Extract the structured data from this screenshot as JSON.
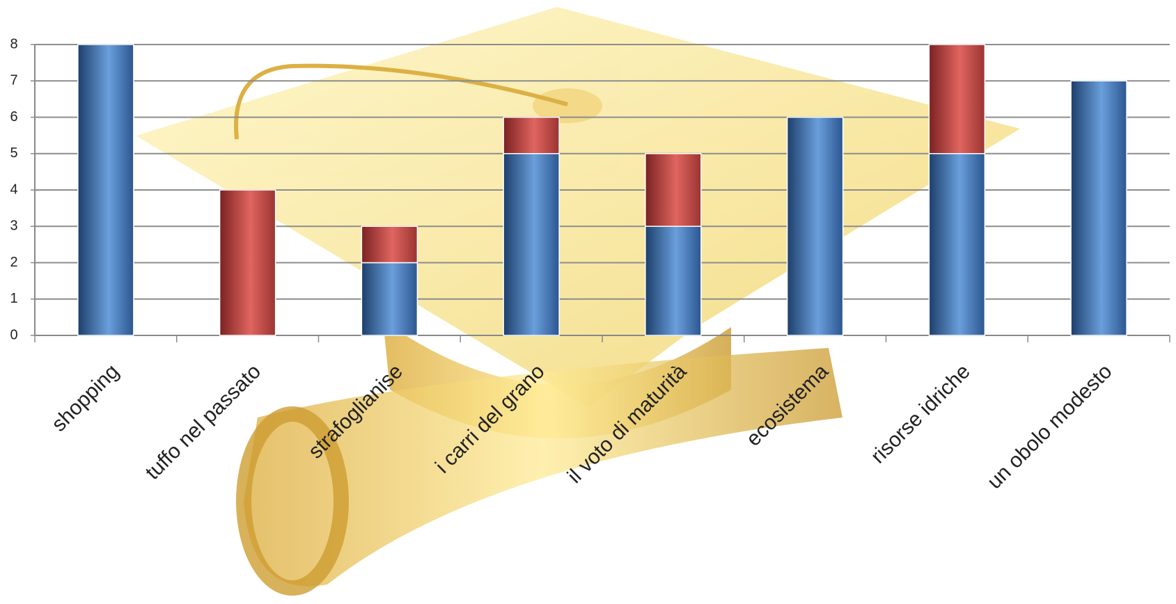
{
  "chart_data": {
    "type": "stacked_bar",
    "categories": [
      "shopping",
      "tuffo nel passato",
      "strafoglianise",
      "i carri del grano",
      "il voto di maturità",
      "ecosistema",
      "risorse idriche",
      "un obolo modesto"
    ],
    "series": [
      {
        "color": "#3d6fae",
        "values": [
          8,
          0,
          2,
          5,
          3,
          6,
          5,
          7
        ]
      },
      {
        "color": "#c0504d",
        "values": [
          0,
          4,
          1,
          1,
          2,
          0,
          3,
          0
        ]
      }
    ],
    "ylim": [
      0,
      8
    ],
    "yticks": [
      0,
      1,
      2,
      3,
      4,
      5,
      6,
      7,
      8
    ],
    "grid": true
  }
}
